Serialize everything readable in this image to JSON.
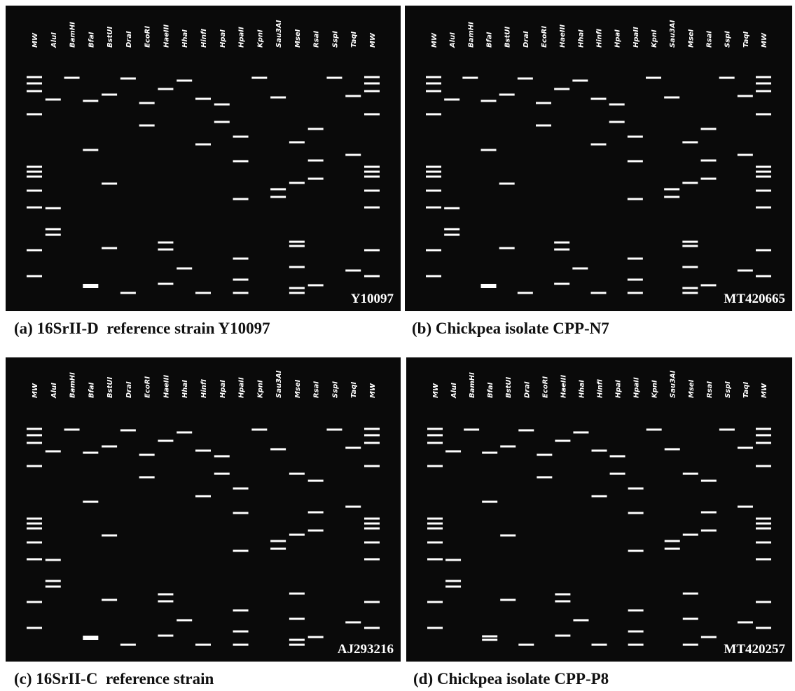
{
  "panels": [
    {
      "lanes": [
        "MW",
        "AluI",
        "BamHI",
        "BfaI",
        "BstUI",
        "DraI",
        "EcoRI",
        "HaeIII",
        "HhaI",
        "HinfI",
        "HpaI",
        "HpaII",
        "KpnI",
        "Sau3AI",
        "MseI",
        "RsaI",
        "SspI",
        "TaqI",
        "MW"
      ],
      "tag": "Y10097",
      "caption": "(a) 16SrII-D  reference strain Y10097"
    },
    {
      "lanes": [
        "MW",
        "AluI",
        "BamHI",
        "BfaI",
        "BstUI",
        "DraI",
        "EcoRI",
        "HaeIII",
        "HhaI",
        "HinfI",
        "HpaI",
        "HpaII",
        "KpnI",
        "Sau3AI",
        "MseI",
        "RsaI",
        "SspI",
        "TaqI",
        "MW"
      ],
      "tag": "MT420665",
      "caption": "(b) Chickpea isolate CPP-N7"
    },
    {
      "lanes": [
        "MW",
        "AluI",
        "BamHI",
        "BfaI",
        "BstUI",
        "DraI",
        "EcoRI",
        "HaeIII",
        "HhaI",
        "HinfI",
        "HpaI",
        "HpaII",
        "KpnI",
        "Sau3AI",
        "MseI",
        "RsaI",
        "SspI",
        "TaqI",
        "MW"
      ],
      "tag": "AJ293216",
      "caption": "(c) 16SrII-C  reference strain"
    },
    {
      "lanes": [
        "MW",
        "AluI",
        "BamHI",
        "BfaI",
        "BstUI",
        "DraI",
        "EcoRI",
        "HaeIII",
        "HhaI",
        "HinfI",
        "HpaI",
        "HpaII",
        "KpnI",
        "Sau3AI",
        "MseI",
        "RsaI",
        "SspI",
        "TaqI",
        "MW"
      ],
      "tag": "MT420257",
      "caption": "(d) Chickpea isolate CPP-P8"
    }
  ]
}
